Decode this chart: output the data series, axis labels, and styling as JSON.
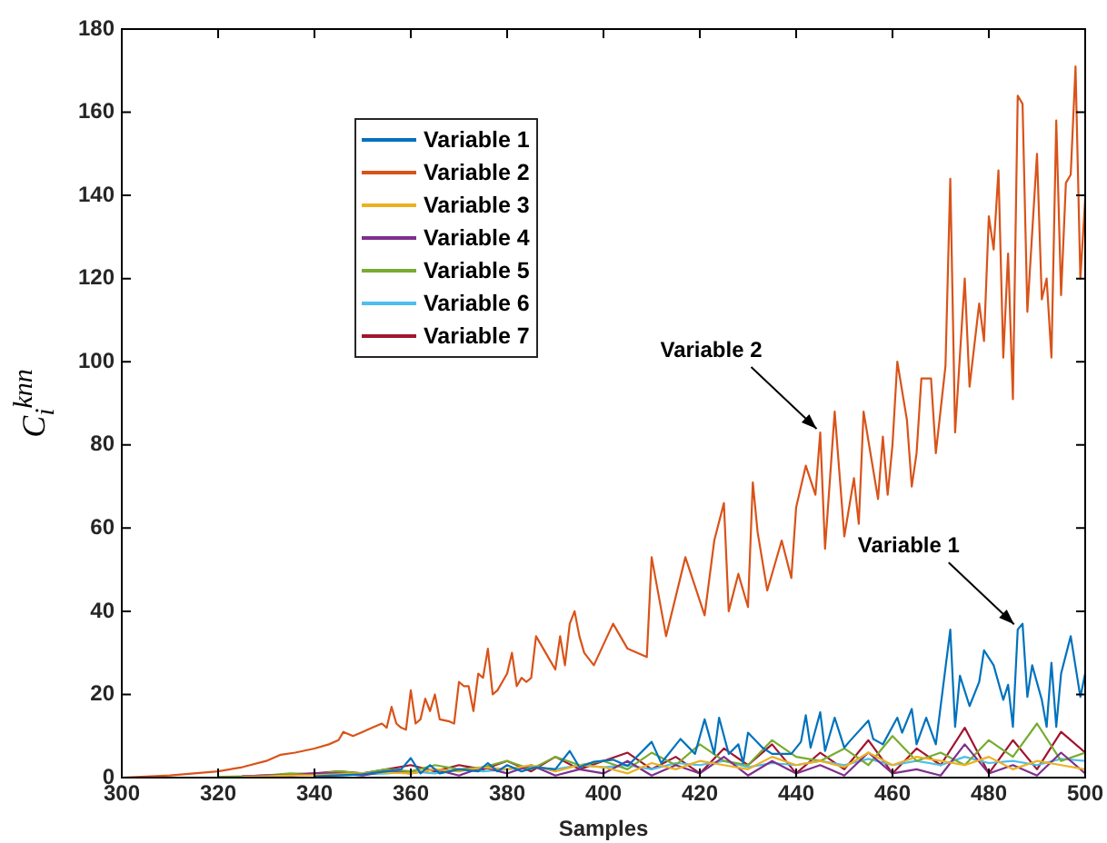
{
  "chart_data": {
    "type": "line",
    "xlabel": "Samples",
    "ylabel": "C$_{i}$$^{knn}$",
    "xlim": [
      300,
      500
    ],
    "ylim": [
      0,
      180
    ],
    "xticks": [
      300,
      320,
      340,
      360,
      380,
      400,
      420,
      440,
      460,
      480,
      500
    ],
    "yticks": [
      0,
      20,
      40,
      60,
      80,
      100,
      120,
      140,
      160,
      180
    ],
    "legend": "top left",
    "marker": "none",
    "line_style": "solid",
    "annotations": [
      {
        "text": "Variable 2",
        "x": 445,
        "y": 83
      },
      {
        "text": "Variable 1",
        "x": 486,
        "y": 36
      }
    ],
    "series": [
      {
        "name": "Variable 1",
        "color": "#0072bd",
        "x": [
          340,
          350,
          355,
          358,
          360,
          362,
          364,
          366,
          370,
          374,
          376,
          378,
          380,
          383,
          386,
          390,
          393,
          395,
          398,
          402,
          405,
          410,
          412,
          416,
          419,
          421,
          423,
          424,
          426,
          428,
          429,
          430,
          433,
          435,
          439,
          441,
          442,
          443,
          445,
          446,
          448,
          450,
          451,
          455,
          456,
          458,
          461,
          462,
          464,
          465,
          467,
          469,
          472,
          473,
          474,
          476,
          478,
          479,
          481,
          483,
          484,
          485,
          486,
          487,
          488,
          489,
          491,
          492,
          493,
          494,
          495,
          497,
          499,
          500
        ],
        "values": [
          0.3,
          0.8,
          1.5,
          2,
          4.7,
          1,
          3,
          1,
          2,
          1.5,
          3.5,
          1.5,
          3,
          1.5,
          2.5,
          2,
          6.4,
          2.5,
          3.8,
          4.3,
          2.8,
          8.6,
          3.5,
          9.3,
          5.7,
          14,
          5.7,
          14.4,
          5.7,
          8,
          3.5,
          10.8,
          7.2,
          5.7,
          5.7,
          8.6,
          15,
          7.2,
          15.7,
          6.4,
          14.4,
          7.2,
          8.6,
          13.7,
          9.3,
          8,
          14.4,
          10.8,
          16.5,
          8,
          14.4,
          8,
          35.6,
          12.2,
          24.5,
          17.2,
          23,
          30.6,
          27,
          18.7,
          22.3,
          12.2,
          35.6,
          37,
          19.4,
          27,
          18.7,
          12.2,
          27.6,
          12.2,
          25,
          34,
          19.4,
          25
        ]
      },
      {
        "name": "Variable 2",
        "color": "#d95319",
        "x": [
          300,
          310,
          320,
          325,
          330,
          333,
          336,
          338,
          340,
          343,
          345,
          346,
          348,
          350,
          352,
          354,
          355,
          356,
          357,
          358,
          359,
          360,
          361,
          362,
          363,
          364,
          365,
          366,
          368,
          369,
          370,
          371,
          372,
          373,
          374,
          375,
          376,
          377,
          378,
          380,
          381,
          382,
          383,
          384,
          385,
          386,
          388,
          390,
          391,
          392,
          393,
          394,
          395,
          396,
          398,
          402,
          405,
          409,
          410,
          413,
          417,
          421,
          423,
          425,
          426,
          428,
          430,
          431,
          432,
          434,
          437,
          439,
          440,
          442,
          444,
          445,
          446,
          448,
          450,
          452,
          453,
          454,
          457,
          458,
          459,
          460,
          461,
          463,
          464,
          465,
          466,
          468,
          469,
          471,
          472,
          473,
          475,
          476,
          478,
          479,
          480,
          481,
          482,
          483,
          484,
          485,
          486,
          487,
          488,
          490,
          491,
          492,
          493,
          494,
          495,
          496,
          497,
          498,
          499,
          500
        ],
        "values": [
          0,
          0.5,
          1.5,
          2.5,
          4,
          5.5,
          6,
          6.5,
          7,
          8,
          9,
          11,
          10,
          11,
          12,
          13,
          12,
          17,
          13,
          12,
          11.5,
          21,
          13,
          14,
          19,
          16,
          20,
          14,
          13.5,
          13,
          23,
          22,
          22,
          16,
          25,
          24,
          31,
          20,
          21,
          25,
          30,
          22,
          24,
          23,
          24,
          34,
          30,
          26,
          34,
          27,
          37,
          40,
          34,
          30,
          27,
          37,
          31,
          29,
          53,
          34,
          53,
          39,
          57,
          66,
          40,
          49,
          41,
          71,
          59,
          45,
          57,
          48,
          65,
          75,
          68,
          83,
          55,
          88,
          58,
          72,
          61,
          88,
          67,
          82,
          68,
          80,
          100,
          86,
          70,
          78,
          96,
          96,
          78,
          99,
          144,
          83,
          120,
          94,
          114,
          105,
          135,
          127,
          146,
          101,
          126,
          91,
          164,
          162,
          112,
          150,
          115,
          120,
          101,
          158,
          116,
          143,
          145,
          171,
          120,
          139
        ]
      },
      {
        "name": "Variable 3",
        "color": "#edb120",
        "x": [
          325,
          330,
          335,
          340,
          345,
          350,
          355,
          360,
          365,
          370,
          375,
          380,
          385,
          390,
          395,
          400,
          405,
          410,
          415,
          420,
          425,
          430,
          435,
          440,
          445,
          450,
          455,
          460,
          465,
          470,
          475,
          480,
          485,
          490,
          495,
          500
        ],
        "values": [
          0.2,
          0.3,
          0.5,
          0.6,
          0.8,
          1,
          1.2,
          1,
          2,
          1.5,
          2.5,
          2,
          3,
          1.5,
          3,
          2.5,
          1,
          3.5,
          2,
          4,
          3,
          2,
          5,
          3,
          4,
          2.5,
          6,
          3,
          5,
          4,
          3,
          5,
          2,
          4,
          3,
          2
        ]
      },
      {
        "name": "Variable 4",
        "color": "#7e2f8e",
        "x": [
          325,
          330,
          335,
          340,
          345,
          350,
          355,
          360,
          365,
          370,
          375,
          380,
          385,
          390,
          395,
          400,
          405,
          410,
          415,
          420,
          425,
          430,
          435,
          440,
          445,
          450,
          455,
          460,
          465,
          470,
          475,
          480,
          485,
          490,
          495,
          500
        ],
        "values": [
          0.3,
          0.5,
          0.5,
          1,
          1,
          0.5,
          1.5,
          1,
          2,
          0.5,
          2.5,
          1,
          3,
          0.5,
          2,
          1,
          4,
          0.5,
          3,
          1,
          5,
          0.5,
          4,
          1,
          3,
          0.5,
          6,
          1,
          2,
          0.5,
          8,
          1,
          3,
          0.5,
          6,
          1
        ]
      },
      {
        "name": "Variable 5",
        "color": "#77ac30",
        "x": [
          320,
          325,
          330,
          335,
          340,
          345,
          350,
          355,
          360,
          365,
          370,
          375,
          380,
          385,
          390,
          395,
          400,
          405,
          410,
          415,
          420,
          425,
          430,
          435,
          440,
          445,
          450,
          455,
          460,
          465,
          470,
          475,
          480,
          485,
          490,
          495,
          500
        ],
        "values": [
          0.2,
          0.3,
          0.5,
          1,
          0.8,
          1.5,
          1,
          2,
          1.5,
          3,
          2,
          2.5,
          4,
          2,
          5,
          3,
          4,
          2,
          6,
          3,
          8,
          4,
          3,
          9,
          5,
          4,
          7,
          3,
          10,
          4,
          6,
          3,
          9,
          5,
          13,
          4,
          6
        ]
      },
      {
        "name": "Variable 6",
        "color": "#4dbeee",
        "x": [
          340,
          345,
          350,
          355,
          360,
          365,
          370,
          375,
          380,
          385,
          390,
          395,
          400,
          405,
          410,
          415,
          420,
          425,
          430,
          435,
          440,
          445,
          450,
          455,
          460,
          465,
          470,
          475,
          480,
          485,
          490,
          495,
          500
        ],
        "values": [
          0.5,
          0.5,
          0.8,
          1,
          1.5,
          1,
          2,
          1.5,
          2,
          2.5,
          2,
          3,
          2.5,
          3,
          2,
          3.5,
          3,
          4,
          2.5,
          3.5,
          3,
          4,
          3,
          4.5,
          3,
          4,
          3,
          5,
          3.5,
          4,
          3,
          4.5,
          4
        ]
      },
      {
        "name": "Variable 7",
        "color": "#a2142f",
        "x": [
          325,
          330,
          335,
          340,
          345,
          350,
          355,
          360,
          365,
          370,
          375,
          380,
          385,
          390,
          395,
          400,
          405,
          410,
          415,
          420,
          425,
          430,
          435,
          440,
          445,
          450,
          455,
          460,
          465,
          470,
          475,
          480,
          485,
          490,
          495,
          500
        ],
        "values": [
          0.3,
          0.5,
          0.8,
          1,
          1.5,
          1,
          2,
          3,
          1.5,
          3,
          2,
          4,
          1.5,
          5,
          2,
          4,
          6,
          2,
          5,
          1,
          7,
          3,
          8,
          1,
          6,
          2,
          9,
          1,
          7,
          3,
          12,
          1,
          9,
          2,
          11,
          6
        ]
      }
    ]
  }
}
